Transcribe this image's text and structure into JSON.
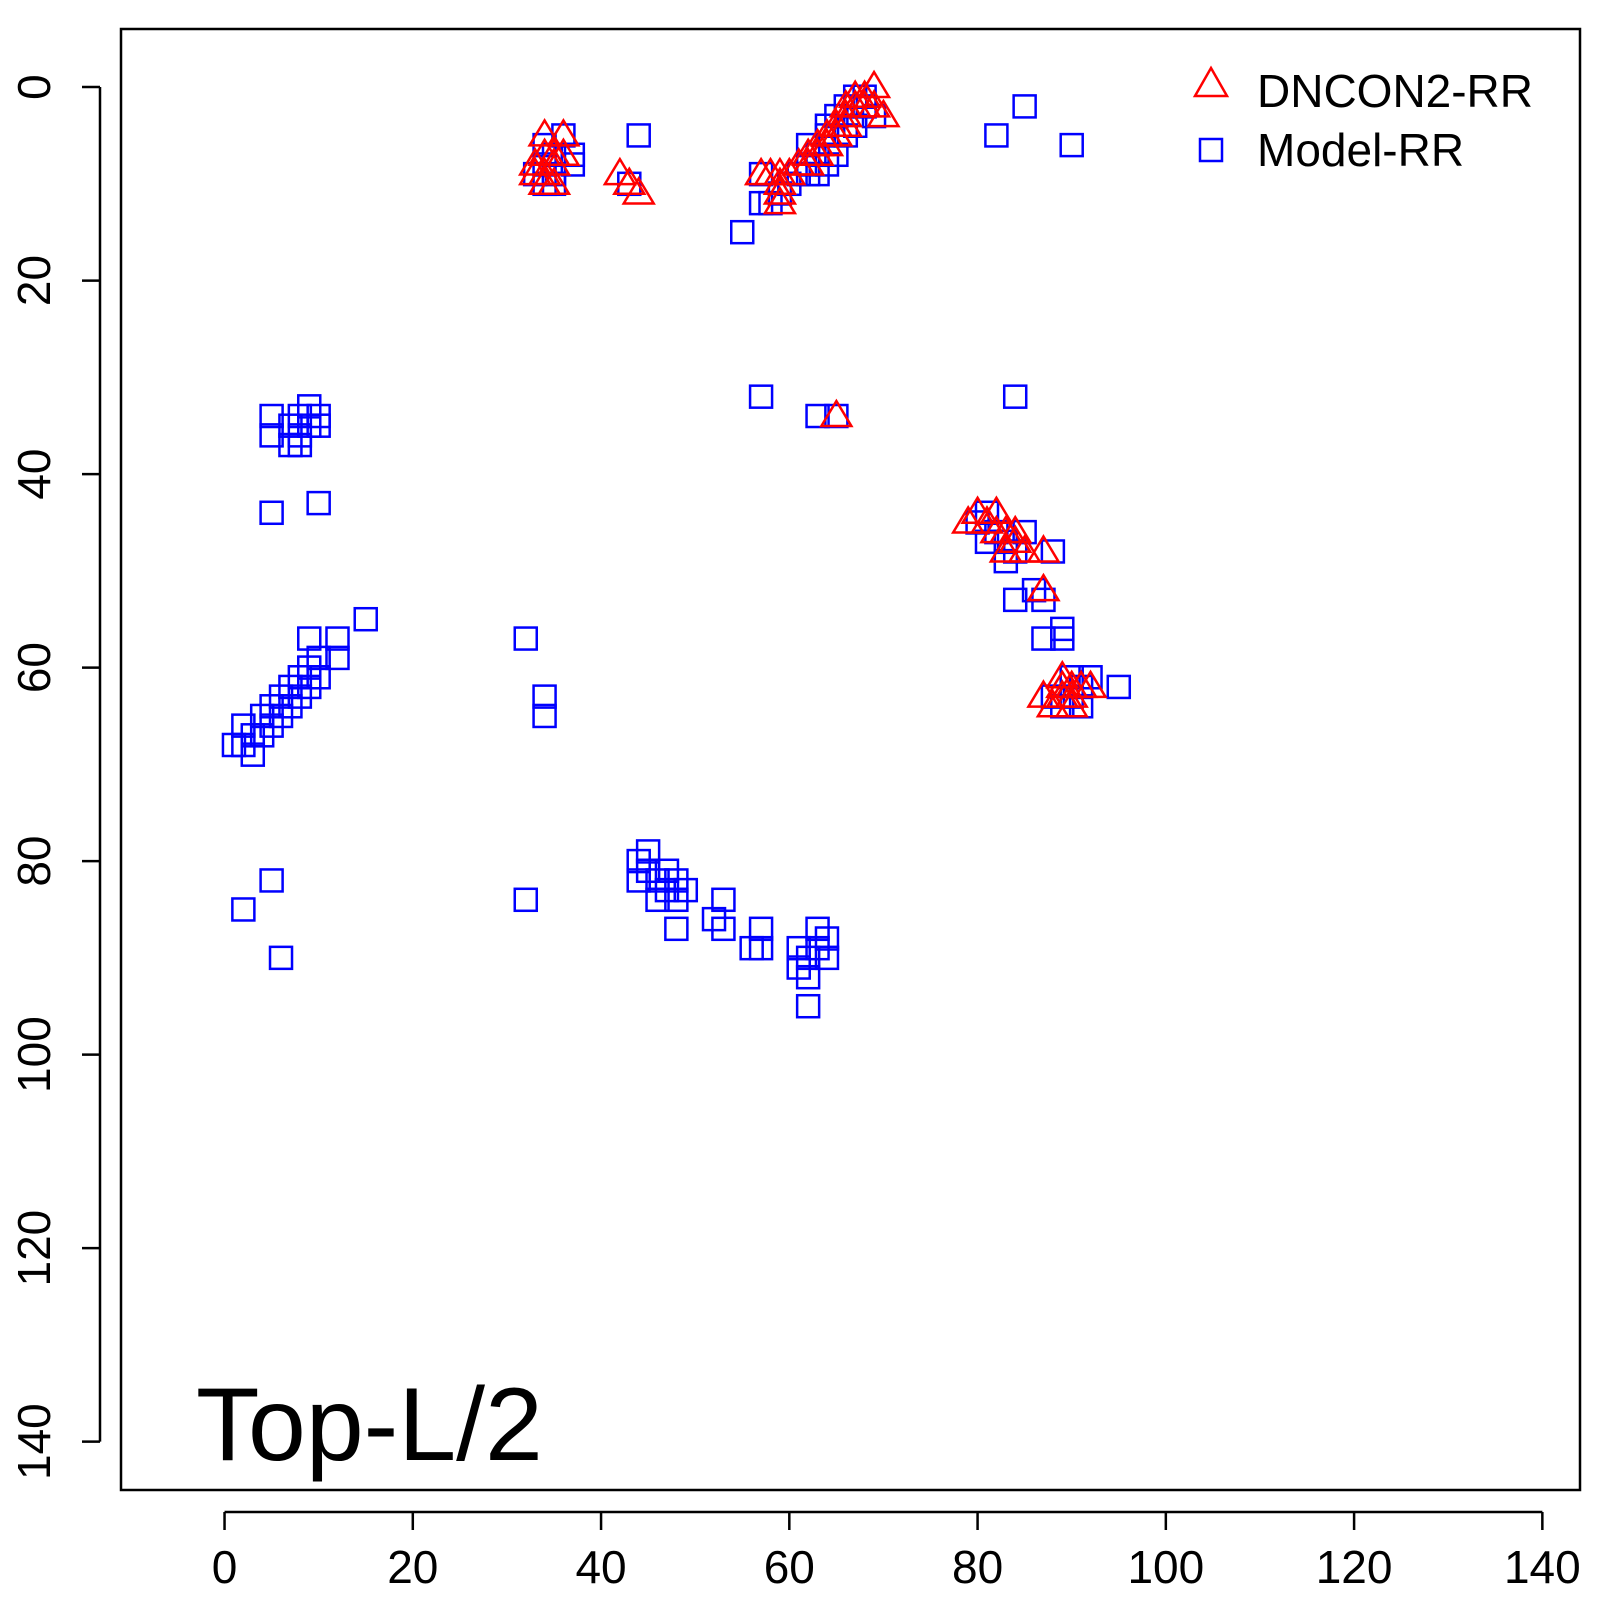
{
  "chart_data": {
    "type": "scatter",
    "title": "",
    "xlabel": "",
    "ylabel": "",
    "xlim": [
      -11,
      144
    ],
    "ylim": [
      145,
      -6
    ],
    "y_inverted": true,
    "grid": false,
    "legend_position": "top-right",
    "x_ticks": [
      0,
      20,
      40,
      60,
      80,
      100,
      120,
      140
    ],
    "y_ticks": [
      0,
      20,
      40,
      60,
      80,
      100,
      120,
      140
    ],
    "annotation": "Top-L/2",
    "series": [
      {
        "name": "DNCON2-RR",
        "marker": "triangle",
        "color": "#ff0000",
        "points": [
          [
            34,
            5
          ],
          [
            36,
            5
          ],
          [
            34,
            7
          ],
          [
            35,
            7
          ],
          [
            33,
            8
          ],
          [
            35,
            8
          ],
          [
            34,
            9
          ],
          [
            36,
            7
          ],
          [
            33,
            9
          ],
          [
            34,
            10
          ],
          [
            35,
            10
          ],
          [
            42,
            9
          ],
          [
            43,
            10
          ],
          [
            44,
            11
          ],
          [
            57,
            9
          ],
          [
            58,
            9
          ],
          [
            59,
            9
          ],
          [
            59,
            10
          ],
          [
            59,
            11
          ],
          [
            59,
            12
          ],
          [
            60,
            9
          ],
          [
            61,
            8
          ],
          [
            62,
            8
          ],
          [
            62,
            7
          ],
          [
            63,
            7
          ],
          [
            63,
            6
          ],
          [
            64,
            6
          ],
          [
            64,
            5
          ],
          [
            65,
            5
          ],
          [
            65,
            4
          ],
          [
            66,
            4
          ],
          [
            66,
            3
          ],
          [
            66,
            2
          ],
          [
            67,
            2
          ],
          [
            67,
            1
          ],
          [
            68,
            2
          ],
          [
            68,
            1
          ],
          [
            69,
            0
          ],
          [
            69,
            2
          ],
          [
            70,
            3
          ],
          [
            65,
            34
          ],
          [
            79,
            45
          ],
          [
            80,
            44
          ],
          [
            81,
            45
          ],
          [
            82,
            44
          ],
          [
            82,
            46
          ],
          [
            83,
            46
          ],
          [
            84,
            46
          ],
          [
            84,
            47
          ],
          [
            83,
            48
          ],
          [
            85,
            48
          ],
          [
            87,
            48
          ],
          [
            87,
            52
          ],
          [
            87,
            63
          ],
          [
            88,
            64
          ],
          [
            89,
            61
          ],
          [
            89,
            62
          ],
          [
            89,
            63
          ],
          [
            90,
            62
          ],
          [
            90,
            63
          ],
          [
            90,
            64
          ],
          [
            91,
            62
          ],
          [
            92,
            62
          ]
        ]
      },
      {
        "name": "Model-RR",
        "marker": "square",
        "color": "#0000ff",
        "points": [
          [
            34,
            6
          ],
          [
            34,
            8
          ],
          [
            35,
            7
          ],
          [
            36,
            5
          ],
          [
            37,
            7
          ],
          [
            37,
            8
          ],
          [
            33,
            9
          ],
          [
            35,
            9
          ],
          [
            34,
            10
          ],
          [
            35,
            10
          ],
          [
            44,
            5
          ],
          [
            43,
            10
          ],
          [
            55,
            15
          ],
          [
            57,
            9
          ],
          [
            57,
            12
          ],
          [
            58,
            12
          ],
          [
            59,
            11
          ],
          [
            60,
            10
          ],
          [
            61,
            9
          ],
          [
            62,
            8
          ],
          [
            62,
            6
          ],
          [
            63,
            7
          ],
          [
            64,
            5
          ],
          [
            64,
            4
          ],
          [
            65,
            3
          ],
          [
            66,
            2
          ],
          [
            67,
            1
          ],
          [
            68,
            1
          ],
          [
            68,
            2
          ],
          [
            69,
            3
          ],
          [
            66,
            5
          ],
          [
            67,
            4
          ],
          [
            65,
            7
          ],
          [
            64,
            8
          ],
          [
            63,
            9
          ],
          [
            62,
            9
          ],
          [
            82,
            5
          ],
          [
            85,
            2
          ],
          [
            90,
            6
          ],
          [
            57,
            32
          ],
          [
            63,
            34
          ],
          [
            65,
            34
          ],
          [
            84,
            32
          ],
          [
            5,
            34
          ],
          [
            5,
            36
          ],
          [
            7,
            35
          ],
          [
            7,
            37
          ],
          [
            8,
            36
          ],
          [
            8,
            34
          ],
          [
            9,
            33
          ],
          [
            9,
            35
          ],
          [
            10,
            34
          ],
          [
            10,
            35
          ],
          [
            8,
            37
          ],
          [
            5,
            44
          ],
          [
            10,
            43
          ],
          [
            1,
            68
          ],
          [
            2,
            66
          ],
          [
            2,
            68
          ],
          [
            3,
            67
          ],
          [
            3,
            69
          ],
          [
            4,
            65
          ],
          [
            4,
            67
          ],
          [
            5,
            64
          ],
          [
            5,
            66
          ],
          [
            6,
            63
          ],
          [
            6,
            65
          ],
          [
            7,
            62
          ],
          [
            7,
            64
          ],
          [
            8,
            61
          ],
          [
            8,
            63
          ],
          [
            9,
            60
          ],
          [
            9,
            62
          ],
          [
            9,
            57
          ],
          [
            10,
            59
          ],
          [
            10,
            61
          ],
          [
            12,
            57
          ],
          [
            12,
            59
          ],
          [
            15,
            55
          ],
          [
            2,
            85
          ],
          [
            5,
            82
          ],
          [
            6,
            90
          ],
          [
            32,
            57
          ],
          [
            34,
            63
          ],
          [
            34,
            65
          ],
          [
            32,
            84
          ],
          [
            44,
            80
          ],
          [
            44,
            82
          ],
          [
            45,
            79
          ],
          [
            45,
            81
          ],
          [
            46,
            82
          ],
          [
            46,
            84
          ],
          [
            47,
            81
          ],
          [
            47,
            83
          ],
          [
            48,
            82
          ],
          [
            48,
            84
          ],
          [
            48,
            87
          ],
          [
            49,
            83
          ],
          [
            52,
            86
          ],
          [
            53,
            84
          ],
          [
            53,
            87
          ],
          [
            56,
            89
          ],
          [
            57,
            87
          ],
          [
            57,
            89
          ],
          [
            61,
            89
          ],
          [
            61,
            91
          ],
          [
            62,
            90
          ],
          [
            62,
            92
          ],
          [
            62,
            95
          ],
          [
            63,
            87
          ],
          [
            63,
            89
          ],
          [
            64,
            88
          ],
          [
            64,
            90
          ],
          [
            80,
            45
          ],
          [
            81,
            44
          ],
          [
            81,
            47
          ],
          [
            82,
            46
          ],
          [
            83,
            47
          ],
          [
            83,
            49
          ],
          [
            84,
            48
          ],
          [
            85,
            46
          ],
          [
            84,
            53
          ],
          [
            86,
            52
          ],
          [
            87,
            53
          ],
          [
            87,
            57
          ],
          [
            88,
            48
          ],
          [
            89,
            56
          ],
          [
            89,
            57
          ],
          [
            88,
            63
          ],
          [
            89,
            64
          ],
          [
            90,
            61
          ],
          [
            90,
            63
          ],
          [
            91,
            62
          ],
          [
            91,
            64
          ],
          [
            92,
            61
          ],
          [
            95,
            62
          ]
        ]
      }
    ]
  }
}
